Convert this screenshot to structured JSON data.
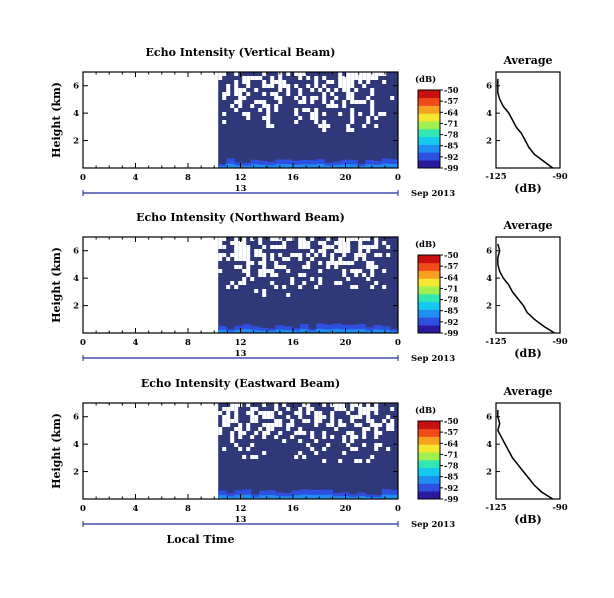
{
  "colors": {
    "noise_floor": "#2f3878",
    "missing": "#ffffff",
    "colormap": [
      "#2a1a9e",
      "#2f4fe0",
      "#1e8ff0",
      "#14c8f0",
      "#30e8b0",
      "#a0f050",
      "#f4e830",
      "#f8a020",
      "#f04a18",
      "#c81010"
    ]
  },
  "chart_data": [
    {
      "type": "heatmap",
      "title": "Echo Intensity (Vertical Beam)",
      "ylabel": "Height (km)",
      "x_ticks": [
        "0",
        "4",
        "8",
        "12",
        "16",
        "20",
        "0"
      ],
      "y_ticks": [
        "2",
        "4",
        "6"
      ],
      "xlim": [
        0,
        24
      ],
      "ylim": [
        0,
        7
      ],
      "date_label": "13",
      "date_suffix": "Sep 2013",
      "data_start_hour": 10.3,
      "colorbar": {
        "label": "(dB)",
        "ticks": [
          "-50",
          "-57",
          "-64",
          "-71",
          "-78",
          "-85",
          "-92",
          "-99"
        ],
        "range": [
          -99,
          -50
        ]
      },
      "average_panel": {
        "title": "Average",
        "xlabel": "(dB)",
        "x_ticks": [
          "-125",
          "-90"
        ],
        "y_ticks": [
          "2",
          "4",
          "6"
        ],
        "height_km": [
          0,
          0.5,
          1,
          1.5,
          2,
          2.5,
          3,
          3.5,
          4,
          4.5,
          5,
          5.5,
          6,
          6.5
        ],
        "values_db": [
          -94,
          -99,
          -104,
          -107,
          -109,
          -111,
          -114,
          -116,
          -118,
          -121,
          -123,
          -124,
          -124,
          -124
        ]
      }
    },
    {
      "type": "heatmap",
      "title": "Echo Intensity (Northward Beam)",
      "ylabel": "Height (km)",
      "x_ticks": [
        "0",
        "4",
        "8",
        "12",
        "16",
        "20",
        "0"
      ],
      "y_ticks": [
        "2",
        "4",
        "6"
      ],
      "xlim": [
        0,
        24
      ],
      "ylim": [
        0,
        7
      ],
      "date_label": "13",
      "date_suffix": "Sep 2013",
      "data_start_hour": 10.3,
      "colorbar": {
        "label": "(dB)",
        "ticks": [
          "-50",
          "-57",
          "-64",
          "-71",
          "-78",
          "-85",
          "-92",
          "-99"
        ],
        "range": [
          -99,
          -50
        ]
      },
      "average_panel": {
        "title": "Average",
        "xlabel": "(dB)",
        "x_ticks": [
          "-125",
          "-90"
        ],
        "y_ticks": [
          "2",
          "4",
          "6"
        ],
        "height_km": [
          0,
          0.5,
          1,
          1.5,
          2,
          2.5,
          3,
          3.5,
          4,
          4.5,
          5,
          5.5,
          6,
          6.5
        ],
        "values_db": [
          -93,
          -99,
          -104,
          -108,
          -110,
          -113,
          -116,
          -118,
          -121,
          -123,
          -124,
          -124,
          -123,
          -124
        ]
      }
    },
    {
      "type": "heatmap",
      "title": "Echo Intensity (Eastward Beam)",
      "ylabel": "Height (km)",
      "xlabel": "Local Time",
      "x_ticks": [
        "0",
        "4",
        "8",
        "12",
        "16",
        "20",
        "0"
      ],
      "y_ticks": [
        "2",
        "4",
        "6"
      ],
      "xlim": [
        0,
        24
      ],
      "ylim": [
        0,
        7
      ],
      "date_label": "13",
      "date_suffix": "Sep 2013",
      "data_start_hour": 10.3,
      "colorbar": {
        "label": "(dB)",
        "ticks": [
          "-50",
          "-57",
          "-64",
          "-71",
          "-78",
          "-85",
          "-92",
          "-99"
        ],
        "range": [
          -99,
          -50
        ]
      },
      "average_panel": {
        "title": "Average",
        "xlabel": "(dB)",
        "x_ticks": [
          "-125",
          "-90"
        ],
        "y_ticks": [
          "2",
          "4",
          "6"
        ],
        "height_km": [
          0,
          0.5,
          1,
          1.5,
          2,
          2.5,
          3,
          3.5,
          4,
          4.5,
          5,
          5.5,
          6,
          6.5
        ],
        "values_db": [
          -94,
          -100,
          -104,
          -107,
          -110,
          -113,
          -116,
          -118,
          -120,
          -122,
          -124,
          -123,
          -124,
          -124
        ]
      }
    }
  ]
}
